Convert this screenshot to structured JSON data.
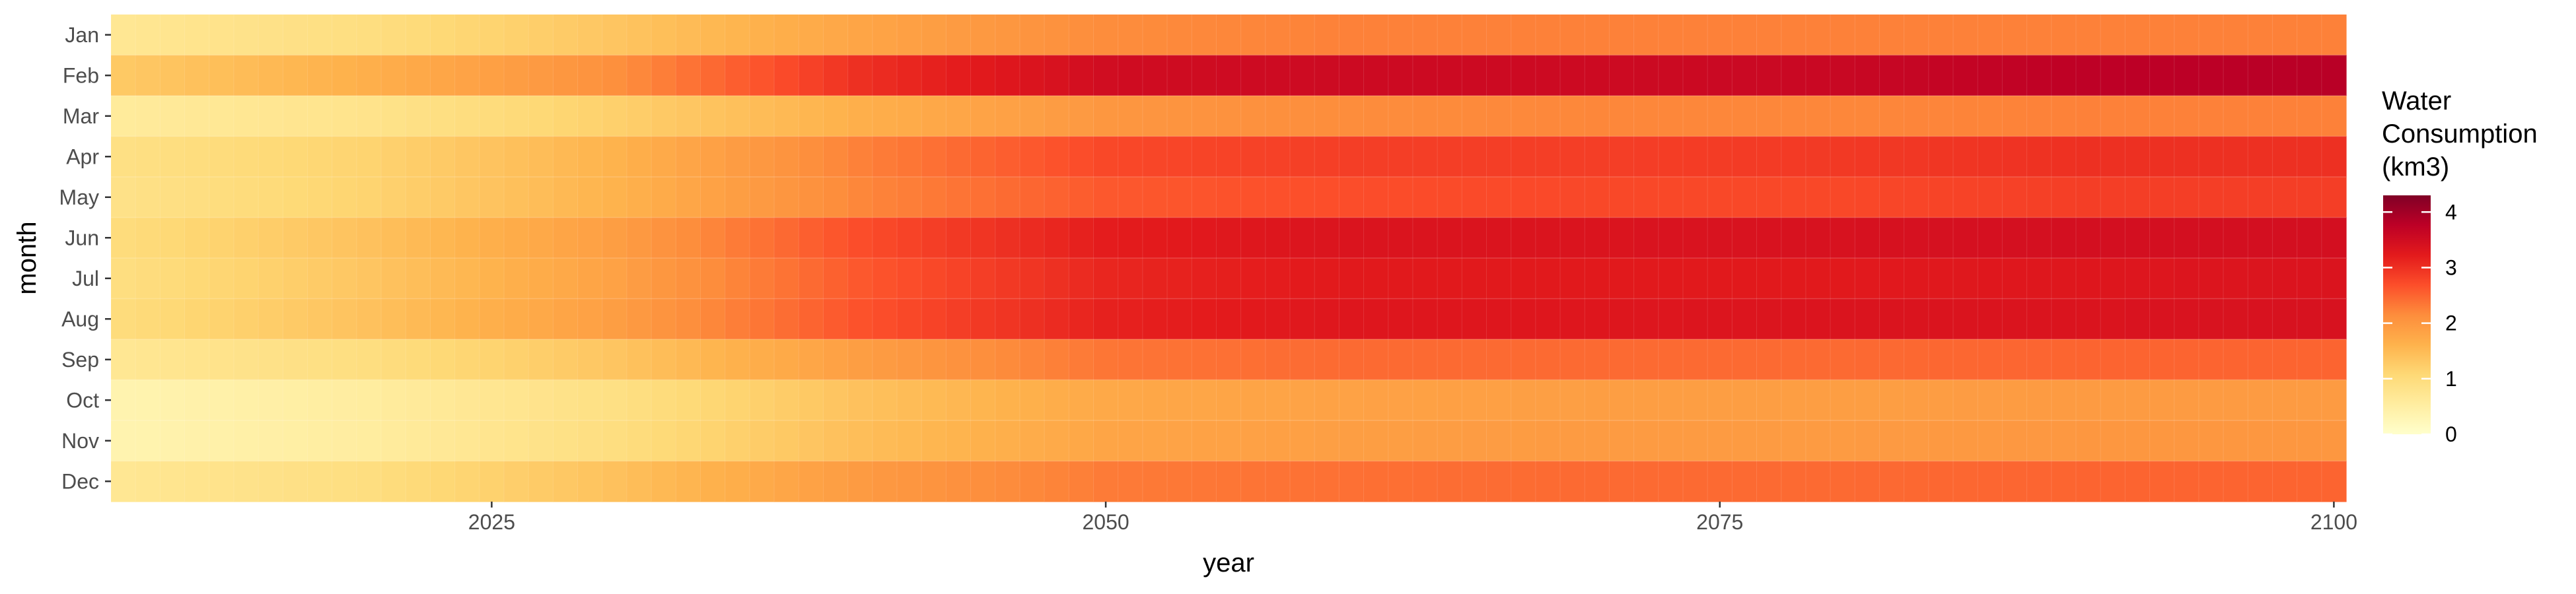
{
  "chart_data": {
    "type": "heatmap",
    "title": "",
    "xlabel": "year",
    "ylabel": "month",
    "x_ticks": [
      "2025",
      "2050",
      "2075",
      "2100"
    ],
    "y_categories": [
      "Jan",
      "Feb",
      "Mar",
      "Apr",
      "May",
      "Jun",
      "Jul",
      "Aug",
      "Sep",
      "Oct",
      "Nov",
      "Dec"
    ],
    "x_range": [
      2010,
      2100
    ],
    "legend": {
      "title": [
        "Water",
        "Consumption",
        "(km3)"
      ],
      "labels": [
        "0",
        "1",
        "2",
        "3",
        "4"
      ],
      "range": [
        0,
        4.3
      ],
      "position": "right"
    },
    "color_scale": [
      "#ffffcc",
      "#ffeda0",
      "#fed976",
      "#feb24c",
      "#fd8d3c",
      "#fc4e2a",
      "#e31a1c",
      "#bd0026",
      "#800026"
    ],
    "grid": false,
    "series": [
      {
        "name": "Jan",
        "years": [
          2010,
          2020,
          2030,
          2040,
          2050,
          2060,
          2070,
          2080,
          2090,
          2100
        ],
        "values": [
          0.7,
          0.95,
          1.35,
          1.8,
          2.15,
          2.25,
          2.25,
          2.25,
          2.25,
          2.25
        ]
      },
      {
        "name": "Feb",
        "years": [
          2010,
          2020,
          2030,
          2040,
          2050,
          2060,
          2070,
          2080,
          2090,
          2100
        ],
        "values": [
          1.3,
          1.65,
          2.1,
          3.0,
          3.5,
          3.55,
          3.55,
          3.6,
          3.75,
          3.8
        ]
      },
      {
        "name": "Mar",
        "years": [
          2010,
          2020,
          2030,
          2040,
          2050,
          2060,
          2070,
          2080,
          2090,
          2100
        ],
        "values": [
          0.6,
          0.8,
          1.2,
          1.65,
          2.0,
          2.15,
          2.2,
          2.2,
          2.25,
          2.25
        ]
      },
      {
        "name": "Apr",
        "years": [
          2010,
          2020,
          2030,
          2040,
          2050,
          2060,
          2070,
          2080,
          2090,
          2100
        ],
        "values": [
          0.9,
          1.15,
          1.6,
          2.25,
          2.75,
          2.85,
          2.85,
          2.9,
          3.0,
          3.0
        ]
      },
      {
        "name": "May",
        "years": [
          2010,
          2020,
          2030,
          2040,
          2050,
          2060,
          2070,
          2080,
          2090,
          2100
        ],
        "values": [
          0.85,
          1.15,
          1.6,
          2.2,
          2.6,
          2.7,
          2.75,
          2.75,
          2.85,
          2.85
        ]
      },
      {
        "name": "Jun",
        "years": [
          2010,
          2020,
          2030,
          2040,
          2050,
          2060,
          2070,
          2080,
          2090,
          2100
        ],
        "values": [
          1.0,
          1.4,
          1.9,
          2.7,
          3.2,
          3.35,
          3.35,
          3.4,
          3.45,
          3.45
        ]
      },
      {
        "name": "Jul",
        "years": [
          2010,
          2020,
          2030,
          2040,
          2050,
          2060,
          2070,
          2080,
          2090,
          2100
        ],
        "values": [
          0.95,
          1.35,
          1.85,
          2.6,
          3.1,
          3.25,
          3.25,
          3.25,
          3.3,
          3.35
        ]
      },
      {
        "name": "Aug",
        "years": [
          2010,
          2020,
          2030,
          2040,
          2050,
          2060,
          2070,
          2080,
          2090,
          2100
        ],
        "values": [
          1.0,
          1.4,
          1.9,
          2.65,
          3.15,
          3.3,
          3.3,
          3.35,
          3.35,
          3.4
        ]
      },
      {
        "name": "Sep",
        "years": [
          2010,
          2020,
          2030,
          2040,
          2050,
          2060,
          2070,
          2080,
          2090,
          2100
        ],
        "values": [
          0.7,
          0.95,
          1.35,
          1.9,
          2.35,
          2.45,
          2.45,
          2.45,
          2.5,
          2.5
        ]
      },
      {
        "name": "Oct",
        "years": [
          2010,
          2020,
          2030,
          2040,
          2050,
          2060,
          2070,
          2080,
          2090,
          2100
        ],
        "values": [
          0.35,
          0.55,
          0.9,
          1.4,
          1.75,
          1.85,
          1.9,
          1.9,
          1.95,
          1.95
        ]
      },
      {
        "name": "Nov",
        "years": [
          2010,
          2020,
          2030,
          2040,
          2050,
          2060,
          2070,
          2080,
          2090,
          2100
        ],
        "values": [
          0.35,
          0.55,
          0.95,
          1.45,
          1.8,
          1.9,
          1.95,
          1.95,
          2.0,
          2.0
        ]
      },
      {
        "name": "Dec",
        "years": [
          2010,
          2020,
          2030,
          2040,
          2050,
          2060,
          2070,
          2080,
          2090,
          2100
        ],
        "values": [
          0.7,
          0.95,
          1.4,
          1.95,
          2.3,
          2.4,
          2.45,
          2.45,
          2.5,
          2.5
        ]
      }
    ]
  }
}
